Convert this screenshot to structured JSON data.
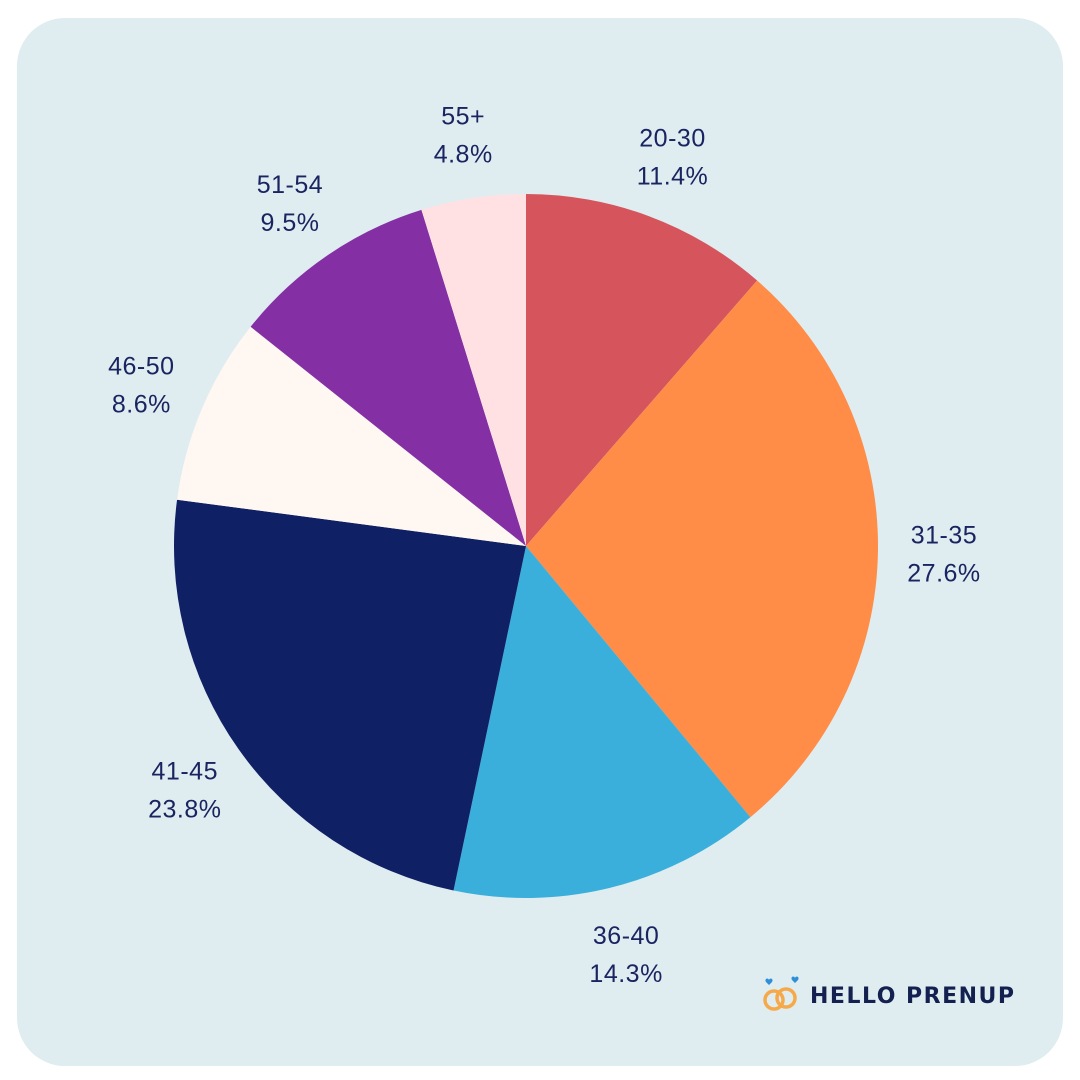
{
  "chart_data": {
    "type": "pie",
    "categories": [
      "20-30",
      "31-35",
      "36-40",
      "41-45",
      "46-50",
      "51-54",
      "55+"
    ],
    "values": [
      11.4,
      27.6,
      14.3,
      23.8,
      8.6,
      9.5,
      4.8
    ],
    "percent_labels": [
      "11.4%",
      "27.6%",
      "14.3%",
      "23.8%",
      "8.6%",
      "9.5%",
      "4.8%"
    ],
    "colors": [
      "#d6545c",
      "#ff8c47",
      "#3aafdb",
      "#102065",
      "#fef7f2",
      "#842fa3",
      "#ffe1e4"
    ],
    "start_angle": "12 o'clock",
    "direction": "clockwise",
    "legend": "none",
    "title": ""
  },
  "brand": {
    "name": "HELLO PRENUP",
    "logo_icon": "interlocked-rings-icon"
  },
  "colors": {
    "background": "#dfedf0",
    "label_text": "#1a2460"
  }
}
